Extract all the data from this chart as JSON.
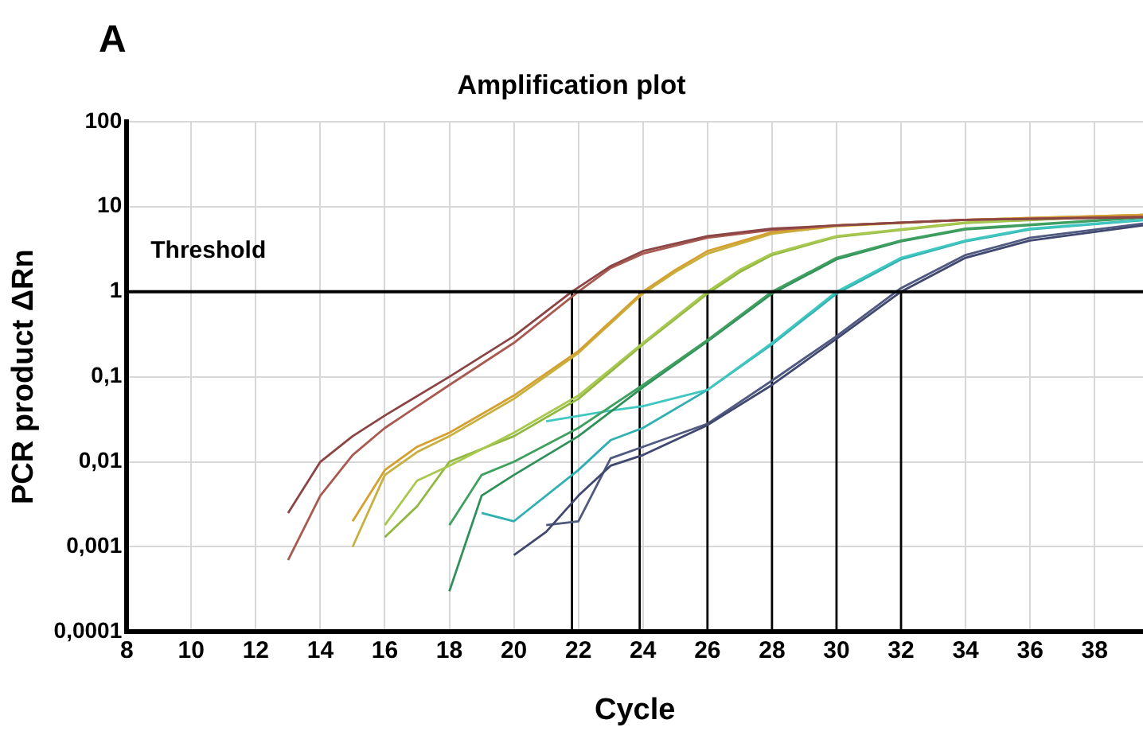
{
  "chart_data": {
    "type": "line",
    "title": "Amplification plot",
    "xlabel": "Cycle",
    "ylabel": "PCR product ΔRn",
    "annotations": [
      "A"
    ],
    "log": "y",
    "grid": true,
    "legend": false,
    "marker": "none",
    "line_style": "solid",
    "xlim": [
      8,
      39.5
    ],
    "xticks": [
      8,
      10,
      12,
      14,
      16,
      18,
      20,
      22,
      24,
      26,
      28,
      30,
      32,
      34,
      36,
      38
    ],
    "ylim": [
      0.0001,
      100
    ],
    "yticks": [
      {
        "value": 0.0001,
        "label": "0,0001"
      },
      {
        "value": 0.001,
        "label": "0,001"
      },
      {
        "value": 0.01,
        "label": "0,01"
      },
      {
        "value": 0.1,
        "label": "0,1"
      },
      1,
      10,
      100
    ],
    "ref_lines": [
      {
        "axis": "y",
        "value": 1,
        "label": "Threshold",
        "color": "#000000"
      }
    ],
    "series": [
      {
        "color": "#8b4545",
        "x": [
          13,
          14,
          15,
          16,
          18,
          20,
          21.8,
          23,
          24,
          26,
          28,
          30,
          34,
          39.5
        ],
        "values": [
          0.0025,
          0.01,
          0.02,
          0.035,
          0.1,
          0.3,
          1,
          2,
          3,
          4.5,
          5.5,
          6,
          7,
          7.5
        ]
      },
      {
        "color": "#a85a50",
        "x": [
          13,
          14,
          15,
          16,
          18,
          20,
          22,
          23,
          24,
          26,
          28,
          30,
          34,
          39.5
        ],
        "values": [
          0.0007,
          0.004,
          0.012,
          0.025,
          0.08,
          0.25,
          1,
          1.9,
          2.8,
          4.3,
          5.3,
          6,
          7,
          7.6
        ]
      },
      {
        "color": "#d4a030",
        "x": [
          15,
          16,
          17,
          18,
          20,
          22,
          24,
          25,
          26,
          28,
          30,
          34,
          39.5
        ],
        "values": [
          0.002,
          0.008,
          0.015,
          0.022,
          0.06,
          0.2,
          1,
          1.8,
          3,
          5,
          6,
          7,
          8
        ]
      },
      {
        "color": "#c8b040",
        "x": [
          15,
          16,
          17,
          18,
          20,
          22,
          24,
          25,
          26,
          28,
          30,
          34,
          39.5
        ],
        "values": [
          0.001,
          0.007,
          0.013,
          0.02,
          0.055,
          0.19,
          0.95,
          1.7,
          2.8,
          4.8,
          5.9,
          7,
          8
        ]
      },
      {
        "color": "#a8c850",
        "x": [
          16,
          17,
          18,
          20,
          22,
          24,
          26,
          27,
          28,
          30,
          34,
          39.5
        ],
        "values": [
          0.0018,
          0.006,
          0.009,
          0.022,
          0.06,
          0.25,
          1,
          1.8,
          2.8,
          4.5,
          6.5,
          8
        ]
      },
      {
        "color": "#90b840",
        "x": [
          16,
          17,
          18,
          20,
          22,
          24,
          26,
          27,
          28,
          30,
          34,
          39.5
        ],
        "values": [
          0.0013,
          0.003,
          0.01,
          0.02,
          0.055,
          0.24,
          0.95,
          1.7,
          2.7,
          4.4,
          6.4,
          8
        ]
      },
      {
        "color": "#40a060",
        "x": [
          18,
          19,
          20,
          22,
          24,
          26,
          28,
          30,
          32,
          34,
          39.5
        ],
        "values": [
          0.0018,
          0.007,
          0.01,
          0.025,
          0.08,
          0.27,
          1,
          2.5,
          4,
          5.5,
          7.5
        ]
      },
      {
        "color": "#30905a",
        "x": [
          18,
          19,
          20,
          22,
          24,
          26,
          28,
          30,
          32,
          34,
          39.5
        ],
        "values": [
          0.0003,
          0.004,
          0.007,
          0.02,
          0.075,
          0.26,
          0.95,
          2.4,
          3.9,
          5.4,
          7.4
        ]
      },
      {
        "color": "#40c8c0",
        "x": [
          21,
          23,
          24,
          26,
          28,
          30,
          32,
          34,
          36,
          39.5
        ],
        "values": [
          0.03,
          0.04,
          0.045,
          0.07,
          0.25,
          1,
          2.5,
          4,
          5.5,
          7
        ]
      },
      {
        "color": "#30b0b0",
        "x": [
          19,
          20,
          22,
          23,
          24,
          26,
          28,
          30,
          32,
          34,
          36,
          39.5
        ],
        "values": [
          0.0025,
          0.002,
          0.008,
          0.018,
          0.025,
          0.07,
          0.24,
          0.95,
          2.4,
          3.9,
          5.4,
          6.9
        ]
      },
      {
        "color": "#404870",
        "x": [
          20,
          21,
          22,
          23,
          24,
          26,
          28,
          30,
          32,
          34,
          36,
          39.5
        ],
        "values": [
          0.0008,
          0.0015,
          0.004,
          0.009,
          0.012,
          0.027,
          0.08,
          0.28,
          1,
          2.5,
          4,
          6
        ]
      },
      {
        "color": "#505a80",
        "x": [
          21,
          22,
          23,
          24,
          26,
          28,
          30,
          32,
          34,
          36,
          39.5
        ],
        "values": [
          0.0018,
          0.002,
          0.011,
          0.015,
          0.028,
          0.09,
          0.3,
          1.1,
          2.7,
          4.3,
          6.3
        ]
      },
      {
        "color": "#000000",
        "x": [
          21.8,
          21.8
        ],
        "values": [
          0.0001,
          1
        ]
      },
      {
        "color": "#000000",
        "x": [
          23.9,
          23.9
        ],
        "values": [
          0.0001,
          1
        ]
      },
      {
        "color": "#000000",
        "x": [
          26,
          26
        ],
        "values": [
          0.0001,
          1
        ]
      },
      {
        "color": "#000000",
        "x": [
          28,
          28
        ],
        "values": [
          0.0001,
          1
        ]
      },
      {
        "color": "#000000",
        "x": [
          30,
          30
        ],
        "values": [
          0.0001,
          1
        ]
      },
      {
        "color": "#000000",
        "x": [
          32,
          32
        ],
        "values": [
          0.0001,
          1
        ]
      }
    ]
  }
}
